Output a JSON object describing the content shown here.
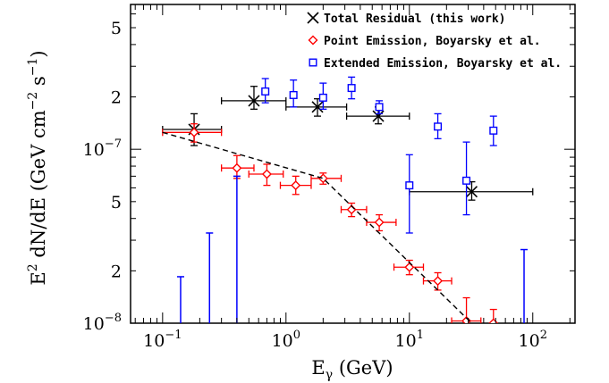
{
  "chart_data": {
    "type": "scatter",
    "xscale": "log",
    "yscale": "log",
    "xlim": [
      0.055,
      220
    ],
    "ylim": [
      1e-08,
      6.8e-07
    ],
    "xlabel": {
      "base": "E",
      "sub": "γ",
      "rest": " (GeV)"
    },
    "ylabel": {
      "pre": "E",
      "sup1": "2",
      "mid": " dN/dE (GeV cm",
      "sup2": "−2",
      "mid2": " s",
      "sup3": "−1",
      "end": ")"
    },
    "x_ticks": [
      {
        "value": 0.1,
        "base": "10",
        "exp": "−1"
      },
      {
        "value": 1,
        "base": "10",
        "exp": "0"
      },
      {
        "value": 10,
        "base": "10",
        "exp": "1"
      },
      {
        "value": 100,
        "base": "10",
        "exp": "2"
      }
    ],
    "y_ticks": [
      {
        "value": 1e-08,
        "base": "10",
        "exp": "−8"
      },
      {
        "value": 2e-08,
        "label": "2"
      },
      {
        "value": 5e-08,
        "label": "5"
      },
      {
        "value": 1e-07,
        "base": "10",
        "exp": "−7"
      },
      {
        "value": 2e-07,
        "label": "2"
      },
      {
        "value": 5e-07,
        "label": "5"
      }
    ],
    "legend_position": "top-right",
    "series": [
      {
        "name": "Total Residual (this work)",
        "marker": "x",
        "color": "#000000",
        "points": [
          {
            "x": 0.18,
            "xlo": 0.1,
            "xhi": 0.3,
            "y": 1.3e-07,
            "ylo": 1.05e-07,
            "yhi": 1.6e-07
          },
          {
            "x": 0.55,
            "xlo": 0.3,
            "xhi": 1.0,
            "y": 1.9e-07,
            "ylo": 1.7e-07,
            "yhi": 2.3e-07
          },
          {
            "x": 1.8,
            "xlo": 1.0,
            "xhi": 3.1,
            "y": 1.75e-07,
            "ylo": 1.55e-07,
            "yhi": 1.95e-07
          },
          {
            "x": 5.6,
            "xlo": 3.1,
            "xhi": 10,
            "y": 1.55e-07,
            "ylo": 1.4e-07,
            "yhi": 1.75e-07
          },
          {
            "x": 32,
            "xlo": 10,
            "xhi": 100,
            "y": 5.7e-08,
            "ylo": 5.1e-08,
            "yhi": 6.5e-08
          }
        ]
      },
      {
        "name": "Point Emission, Boyarsky et al.",
        "marker": "diamond",
        "color": "#ff0000",
        "points": [
          {
            "x": 0.18,
            "xlo": 0.1,
            "xhi": 0.3,
            "y": 1.25e-07,
            "ylo": 1.1e-07,
            "yhi": 1.4e-07
          },
          {
            "x": 0.4,
            "xlo": 0.3,
            "xhi": 0.55,
            "y": 7.8e-08,
            "ylo": 6.8e-08,
            "yhi": 9.2e-08
          },
          {
            "x": 0.7,
            "xlo": 0.5,
            "xhi": 0.95,
            "y": 7.2e-08,
            "ylo": 6.2e-08,
            "yhi": 8.2e-08
          },
          {
            "x": 1.2,
            "xlo": 0.9,
            "xhi": 1.6,
            "y": 6.2e-08,
            "ylo": 5.5e-08,
            "yhi": 7e-08
          },
          {
            "x": 2.0,
            "xlo": 1.6,
            "xhi": 2.8,
            "y": 6.8e-08,
            "ylo": 6.3e-08,
            "yhi": 7.3e-08
          },
          {
            "x": 3.4,
            "xlo": 2.8,
            "xhi": 4.5,
            "y": 4.5e-08,
            "ylo": 4.1e-08,
            "yhi": 4.9e-08
          },
          {
            "x": 5.7,
            "xlo": 4.5,
            "xhi": 7.8,
            "y": 3.8e-08,
            "ylo": 3.4e-08,
            "yhi": 4.2e-08
          },
          {
            "x": 10,
            "xlo": 7.5,
            "xhi": 13,
            "y": 2.1e-08,
            "ylo": 1.9e-08,
            "yhi": 2.3e-08
          },
          {
            "x": 17,
            "xlo": 13,
            "xhi": 22,
            "y": 1.75e-08,
            "ylo": 1.55e-08,
            "yhi": 1.95e-08
          },
          {
            "x": 29,
            "xlo": 22,
            "xhi": 38,
            "y": 1.03e-08,
            "ylo": 9e-09,
            "yhi": 1.4e-08
          },
          {
            "x": 48,
            "xlo": 48,
            "xhi": 48,
            "y": 1e-08,
            "ylo": 9.5e-09,
            "yhi": 1.2e-08
          }
        ]
      },
      {
        "name": "Extended Emission, Boyarsky et al.",
        "marker": "square",
        "color": "#0000ff",
        "points": [
          {
            "x": 0.68,
            "xlo": 0.68,
            "xhi": 0.68,
            "y": 2.15e-07,
            "ylo": 1.85e-07,
            "yhi": 2.55e-07
          },
          {
            "x": 1.15,
            "xlo": 1.15,
            "xhi": 1.15,
            "y": 2.05e-07,
            "ylo": 1.75e-07,
            "yhi": 2.5e-07
          },
          {
            "x": 2.0,
            "xlo": 2.0,
            "xhi": 2.0,
            "y": 1.98e-07,
            "ylo": 1.7e-07,
            "yhi": 2.4e-07
          },
          {
            "x": 3.4,
            "xlo": 3.4,
            "xhi": 3.4,
            "y": 2.25e-07,
            "ylo": 1.95e-07,
            "yhi": 2.6e-07
          },
          {
            "x": 5.7,
            "xlo": 5.7,
            "xhi": 5.7,
            "y": 1.75e-07,
            "ylo": 1.6e-07,
            "yhi": 1.9e-07
          },
          {
            "x": 10,
            "xlo": 10,
            "xhi": 10,
            "y": 6.2e-08,
            "ylo": 3.3e-08,
            "yhi": 9.3e-08
          },
          {
            "x": 17,
            "xlo": 17,
            "xhi": 17,
            "y": 1.35e-07,
            "ylo": 1.15e-07,
            "yhi": 1.6e-07
          },
          {
            "x": 29,
            "xlo": 29,
            "xhi": 29,
            "y": 6.6e-08,
            "ylo": 4.2e-08,
            "yhi": 1.1e-07
          },
          {
            "x": 48,
            "xlo": 48,
            "xhi": 48,
            "y": 1.28e-07,
            "ylo": 1.05e-07,
            "yhi": 1.55e-07
          }
        ]
      },
      {
        "name": "",
        "marker": "none",
        "color": "#0000ff",
        "upper_limit_bars": [
          {
            "x": 0.14,
            "yhi": 1.85e-08
          },
          {
            "x": 0.24,
            "yhi": 3.3e-08
          },
          {
            "x": 0.4,
            "yhi": 7e-08
          },
          {
            "x": 85,
            "yhi": 2.65e-08
          }
        ]
      },
      {
        "name": "",
        "marker": "none",
        "color": "#000000",
        "style": "dashed",
        "line": [
          [
            0.1,
            1.25e-07
          ],
          [
            2.0,
            6.8e-08
          ],
          [
            32,
            1e-08
          ]
        ]
      }
    ]
  }
}
